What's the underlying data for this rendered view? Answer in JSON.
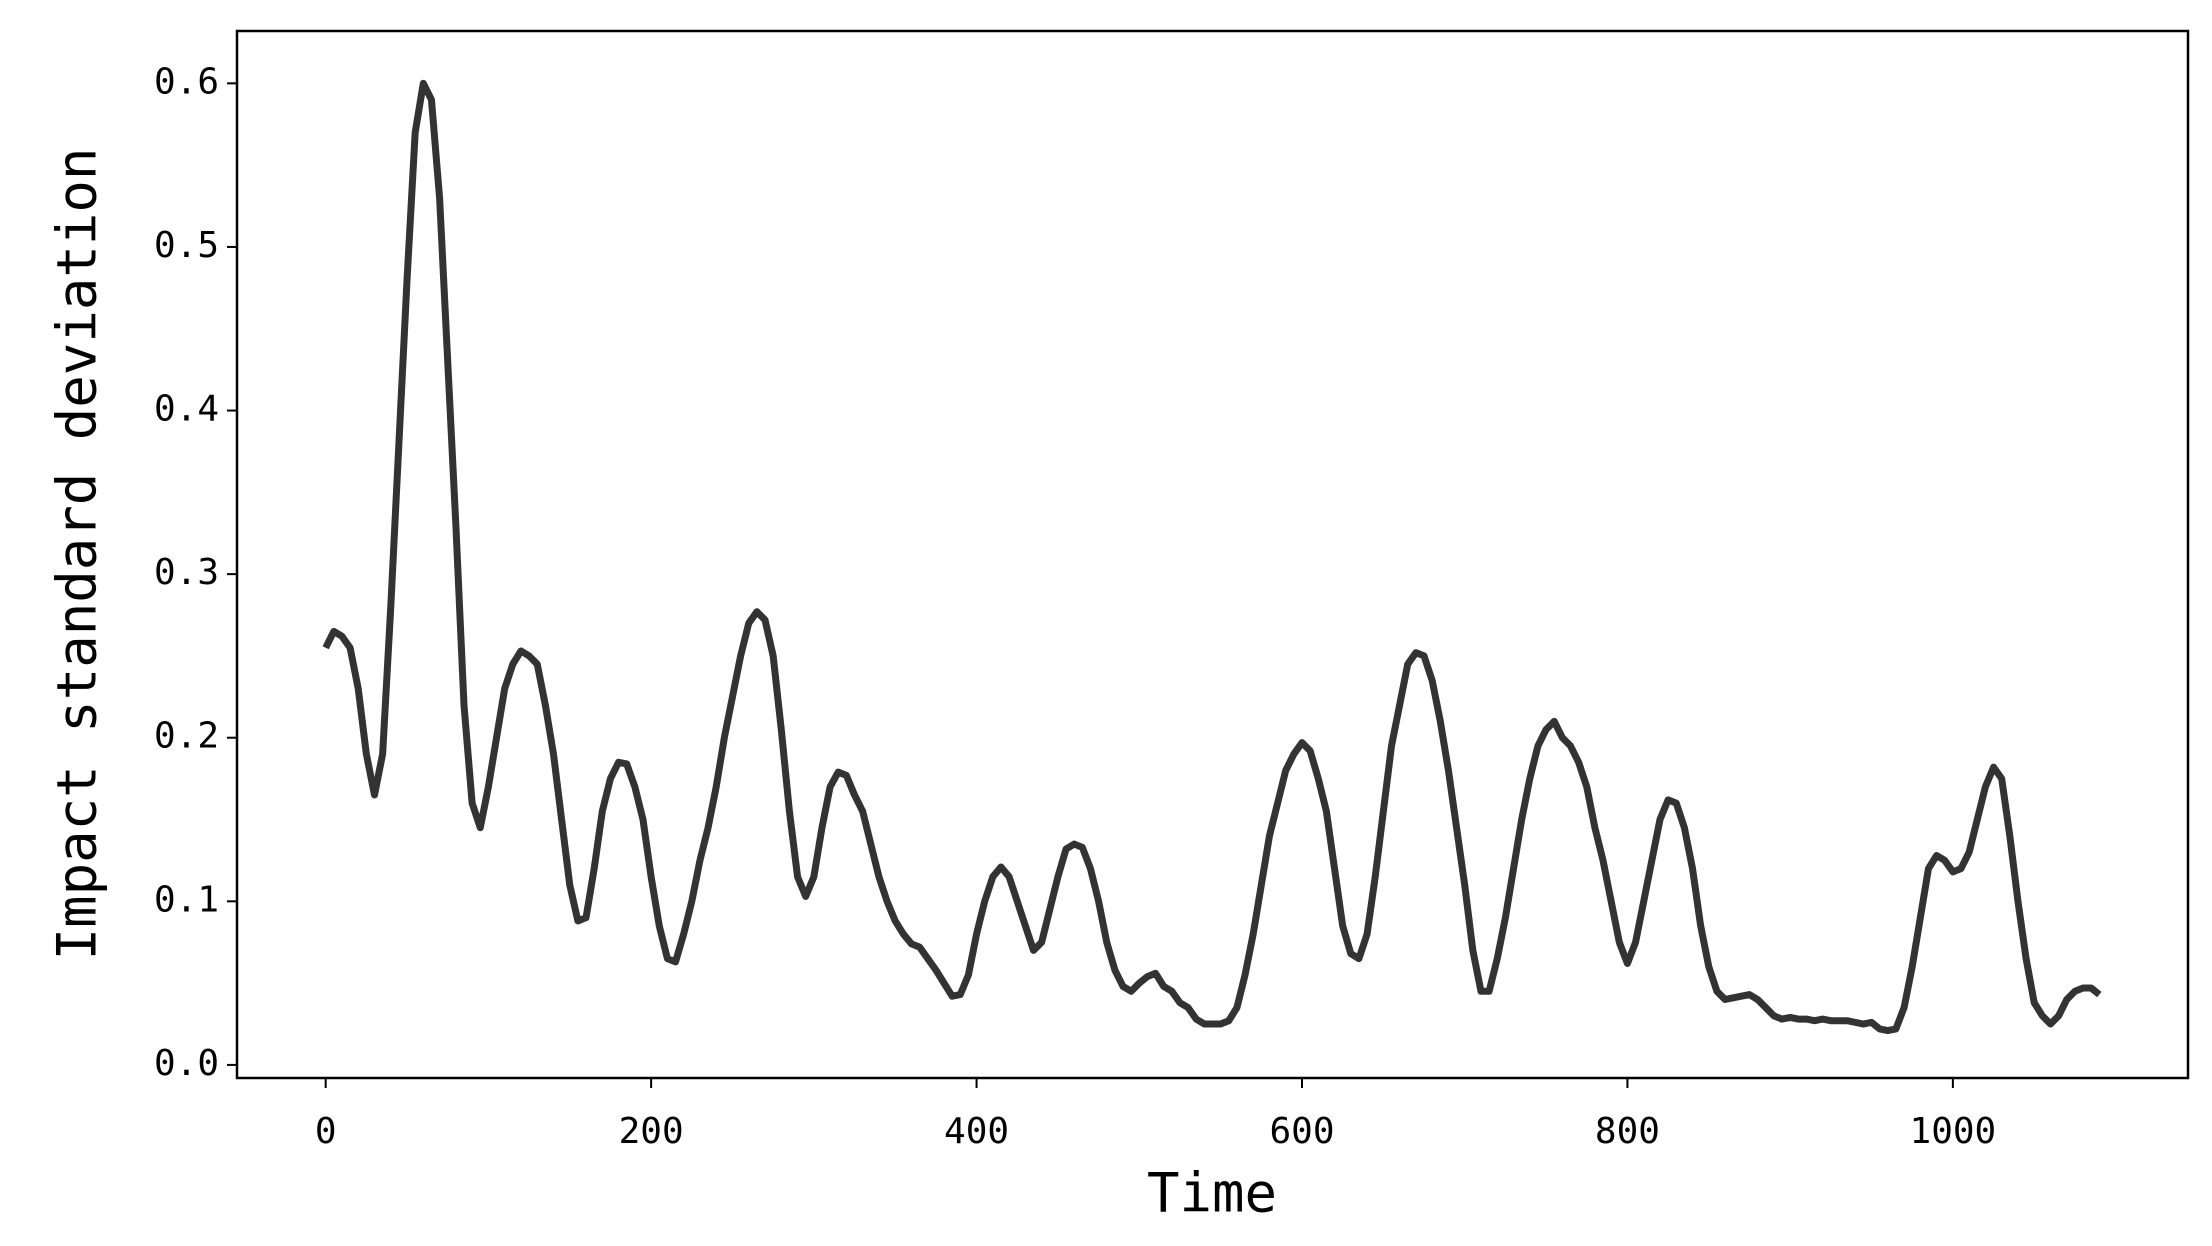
{
  "chart_data": {
    "type": "line",
    "x_label": "Time",
    "y_label": "Impact standard deviation",
    "x": [
      0,
      5,
      10,
      15,
      20,
      25,
      30,
      35,
      40,
      45,
      50,
      55,
      60,
      65,
      70,
      75,
      80,
      85,
      90,
      95,
      100,
      105,
      110,
      115,
      120,
      125,
      130,
      135,
      140,
      145,
      150,
      155,
      160,
      165,
      170,
      175,
      180,
      185,
      190,
      195,
      200,
      205,
      210,
      215,
      220,
      225,
      230,
      235,
      240,
      245,
      250,
      255,
      260,
      265,
      270,
      275,
      280,
      285,
      290,
      295,
      300,
      305,
      310,
      315,
      320,
      325,
      330,
      335,
      340,
      345,
      350,
      355,
      360,
      365,
      370,
      375,
      380,
      385,
      390,
      395,
      400,
      405,
      410,
      415,
      420,
      425,
      430,
      435,
      440,
      445,
      450,
      455,
      460,
      465,
      470,
      475,
      480,
      485,
      490,
      495,
      500,
      505,
      510,
      515,
      520,
      525,
      530,
      535,
      540,
      545,
      550,
      555,
      560,
      565,
      570,
      575,
      580,
      585,
      590,
      595,
      600,
      605,
      610,
      615,
      620,
      625,
      630,
      635,
      640,
      645,
      650,
      655,
      660,
      665,
      670,
      675,
      680,
      685,
      690,
      695,
      700,
      705,
      710,
      715,
      720,
      725,
      730,
      735,
      740,
      745,
      750,
      755,
      760,
      765,
      770,
      775,
      780,
      785,
      790,
      795,
      800,
      805,
      810,
      815,
      820,
      825,
      830,
      835,
      840,
      845,
      850,
      855,
      860,
      865,
      870,
      875,
      880,
      885,
      890,
      895,
      900,
      905,
      910,
      915,
      920,
      925,
      930,
      935,
      940,
      945,
      950,
      955,
      960,
      965,
      970,
      975,
      980,
      985,
      990,
      995,
      1000,
      1005,
      1010,
      1015,
      1020,
      1025,
      1030,
      1035,
      1040,
      1045,
      1050,
      1055,
      1060,
      1065,
      1070,
      1075,
      1080,
      1085,
      1090
    ],
    "series": [
      {
        "color": "#333333",
        "values": [
          0.255,
          0.265,
          0.262,
          0.255,
          0.23,
          0.19,
          0.165,
          0.19,
          0.28,
          0.38,
          0.48,
          0.57,
          0.6,
          0.59,
          0.53,
          0.43,
          0.33,
          0.22,
          0.16,
          0.145,
          0.17,
          0.2,
          0.23,
          0.245,
          0.253,
          0.25,
          0.245,
          0.22,
          0.19,
          0.15,
          0.11,
          0.088,
          0.09,
          0.12,
          0.155,
          0.175,
          0.185,
          0.184,
          0.17,
          0.15,
          0.115,
          0.085,
          0.065,
          0.063,
          0.08,
          0.1,
          0.125,
          0.145,
          0.17,
          0.2,
          0.225,
          0.25,
          0.27,
          0.277,
          0.272,
          0.25,
          0.205,
          0.155,
          0.115,
          0.103,
          0.115,
          0.145,
          0.17,
          0.179,
          0.177,
          0.165,
          0.155,
          0.135,
          0.115,
          0.1,
          0.088,
          0.08,
          0.074,
          0.072,
          0.065,
          0.058,
          0.05,
          0.042,
          0.043,
          0.055,
          0.08,
          0.1,
          0.115,
          0.121,
          0.115,
          0.1,
          0.085,
          0.07,
          0.075,
          0.095,
          0.115,
          0.132,
          0.135,
          0.133,
          0.12,
          0.1,
          0.075,
          0.058,
          0.048,
          0.045,
          0.05,
          0.054,
          0.056,
          0.048,
          0.045,
          0.038,
          0.035,
          0.028,
          0.025,
          0.025,
          0.025,
          0.027,
          0.035,
          0.055,
          0.08,
          0.11,
          0.14,
          0.16,
          0.18,
          0.19,
          0.197,
          0.192,
          0.175,
          0.155,
          0.12,
          0.085,
          0.068,
          0.065,
          0.08,
          0.115,
          0.155,
          0.195,
          0.22,
          0.245,
          0.252,
          0.25,
          0.235,
          0.21,
          0.18,
          0.145,
          0.11,
          0.07,
          0.045,
          0.045,
          0.065,
          0.09,
          0.12,
          0.15,
          0.175,
          0.195,
          0.205,
          0.21,
          0.2,
          0.195,
          0.185,
          0.17,
          0.145,
          0.125,
          0.1,
          0.075,
          0.062,
          0.075,
          0.1,
          0.125,
          0.15,
          0.162,
          0.16,
          0.145,
          0.12,
          0.085,
          0.06,
          0.045,
          0.04,
          0.041,
          0.042,
          0.043,
          0.04,
          0.035,
          0.03,
          0.028,
          0.029,
          0.028,
          0.028,
          0.027,
          0.028,
          0.027,
          0.027,
          0.027,
          0.026,
          0.025,
          0.026,
          0.022,
          0.021,
          0.022,
          0.035,
          0.06,
          0.09,
          0.12,
          0.128,
          0.125,
          0.118,
          0.12,
          0.13,
          0.15,
          0.17,
          0.182,
          0.175,
          0.14,
          0.1,
          0.065,
          0.038,
          0.03,
          0.025,
          0.03,
          0.04,
          0.045,
          0.047,
          0.047,
          0.043
        ]
      }
    ],
    "xlim": [
      -54.5,
      1144.5
    ],
    "xticks": [
      0,
      200,
      400,
      600,
      800,
      1000
    ],
    "ylim": [
      -0.008,
      0.632
    ],
    "yticks": [
      {
        "value": 0,
        "label": "0.0"
      },
      0.1,
      0.2,
      0.3,
      0.4,
      0.5,
      0.6
    ],
    "grid": false
  }
}
